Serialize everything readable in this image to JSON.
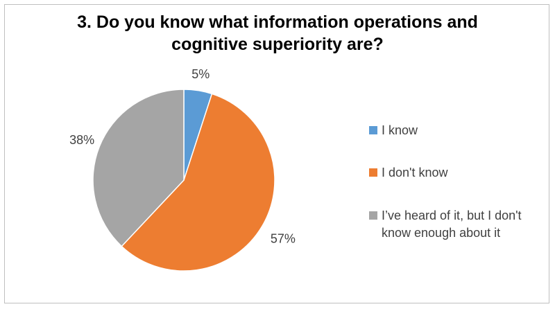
{
  "chart_data": {
    "type": "pie",
    "title_lines": [
      "3. Do you know what information operations and",
      "cognitive superiority are?"
    ],
    "categories": [
      "I know",
      "I don't know",
      "I’ve heard of it, but I don't know enough about it"
    ],
    "values": [
      5,
      57,
      38
    ],
    "value_labels": [
      "5%",
      "57%",
      "38%"
    ],
    "colors": [
      "#5b9bd5",
      "#ed7d31",
      "#a5a5a5"
    ],
    "legend_position": "right",
    "legend": [
      {
        "lines": [
          "I know"
        ]
      },
      {
        "lines": [
          "I don't know"
        ]
      },
      {
        "lines": [
          "I’ve heard of it, but I don't",
          "know enough about it"
        ]
      }
    ]
  }
}
